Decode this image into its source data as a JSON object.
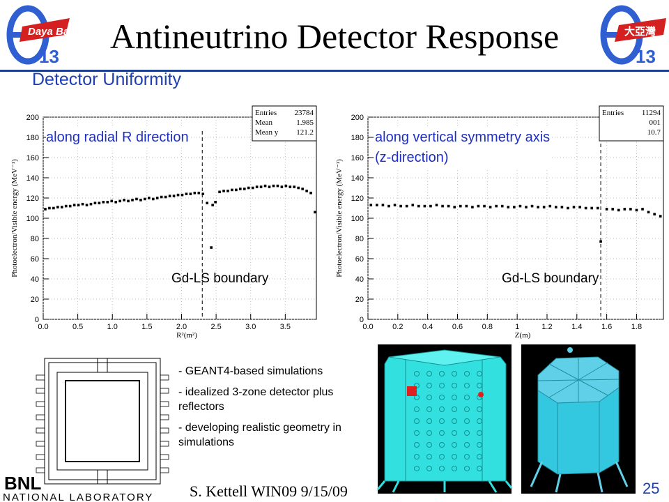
{
  "slide": {
    "title": "Antineutrino Detector Response",
    "subtitle": "Detector Uniformity",
    "page_number": "25",
    "footer": "S. Kettell WIN09 9/15/09",
    "logos": {
      "left": {
        "text": "Daya Bay",
        "symbol": "θ",
        "sub": "13"
      },
      "right": {
        "text": "大亞灣",
        "symbol": "θ",
        "sub": "13"
      },
      "bnl": {
        "text": "BNL",
        "subtext": "NATIONAL LABORATORY"
      }
    },
    "bullets": [
      "- GEANT4-based simulations",
      "- idealized 3-zone detector plus reflectors",
      "- developing realistic geometry in simulations"
    ],
    "colors": {
      "accent": "#1f3fb0",
      "rule": "#1f3f8f",
      "detector": "#33e0e0"
    }
  },
  "chart_data": [
    {
      "type": "scatter",
      "overlay_label": "along radial R direction",
      "boundary_label": "Gd-LS boundary",
      "boundary_x": 2.3,
      "xlabel": "R²(m²)",
      "ylabel": "Photoelectron/Visible energy (MeV⁻¹)",
      "xlim": [
        0,
        3.95
      ],
      "ylim": [
        0,
        200
      ],
      "xticks": [
        "0.0",
        "0.5",
        "1.0",
        "1.5",
        "2.0",
        "2.5",
        "3.0",
        "3.5"
      ],
      "xtick_values": [
        0,
        0.5,
        1.0,
        1.5,
        2.0,
        2.5,
        3.0,
        3.5
      ],
      "yticks": [
        "0",
        "20",
        "40",
        "60",
        "80",
        "100",
        "120",
        "140",
        "160",
        "180",
        "200"
      ],
      "stats": {
        "rows": [
          [
            "Entries",
            "23784"
          ],
          [
            "Mean",
            "1.985"
          ],
          [
            "Mean y",
            "121.2"
          ]
        ]
      },
      "x": [
        0.03,
        0.09,
        0.15,
        0.21,
        0.27,
        0.33,
        0.39,
        0.45,
        0.51,
        0.57,
        0.63,
        0.69,
        0.75,
        0.81,
        0.87,
        0.93,
        0.99,
        1.05,
        1.11,
        1.17,
        1.23,
        1.29,
        1.35,
        1.41,
        1.47,
        1.53,
        1.59,
        1.65,
        1.71,
        1.77,
        1.83,
        1.89,
        1.95,
        2.01,
        2.07,
        2.13,
        2.19,
        2.25,
        2.31,
        2.37,
        2.43,
        2.45,
        2.49,
        2.55,
        2.61,
        2.67,
        2.73,
        2.79,
        2.85,
        2.91,
        2.97,
        3.03,
        3.09,
        3.15,
        3.21,
        3.27,
        3.33,
        3.39,
        3.45,
        3.51,
        3.57,
        3.63,
        3.69,
        3.75,
        3.81,
        3.87,
        3.93
      ],
      "y": [
        109,
        110,
        110,
        111,
        111,
        112,
        112,
        113,
        113,
        114,
        113,
        114,
        115,
        115,
        116,
        116,
        117,
        116,
        117,
        118,
        117,
        118,
        119,
        118,
        119,
        120,
        119,
        120,
        121,
        121,
        122,
        122,
        123,
        123,
        124,
        124,
        125,
        125,
        124,
        115,
        71,
        113,
        116,
        126,
        127,
        127,
        128,
        128,
        129,
        129,
        130,
        130,
        131,
        131,
        132,
        131,
        132,
        132,
        131,
        132,
        131,
        131,
        130,
        129,
        127,
        125,
        106
      ]
    },
    {
      "type": "scatter",
      "overlay_label": "along vertical symmetry axis (z-direction)",
      "overlay_lines": [
        "along vertical symmetry axis",
        "(z-direction)"
      ],
      "boundary_label": "Gd-LS boundary",
      "boundary_x": 1.56,
      "xlabel": "Z(m)",
      "ylabel": "Photoelectron/Visible energy (MeV⁻¹)",
      "xlim": [
        0,
        1.98
      ],
      "ylim": [
        0,
        200
      ],
      "xticks": [
        "0.0",
        "0.2",
        "0.4",
        "0.6",
        "0.8",
        "1",
        "1.2",
        "1.4",
        "1.6",
        "1.8"
      ],
      "xtick_values": [
        0,
        0.2,
        0.4,
        0.6,
        0.8,
        1.0,
        1.2,
        1.4,
        1.6,
        1.8
      ],
      "yticks": [
        "0",
        "20",
        "40",
        "60",
        "80",
        "100",
        "120",
        "140",
        "160",
        "180",
        "200"
      ],
      "stats": {
        "rows": [
          [
            "Entries",
            "11294"
          ],
          [
            "",
            "001"
          ],
          [
            "",
            "10.7"
          ]
        ]
      },
      "x": [
        0.02,
        0.06,
        0.1,
        0.14,
        0.18,
        0.22,
        0.26,
        0.3,
        0.34,
        0.38,
        0.42,
        0.46,
        0.5,
        0.54,
        0.58,
        0.62,
        0.66,
        0.7,
        0.74,
        0.78,
        0.82,
        0.86,
        0.9,
        0.94,
        0.98,
        1.02,
        1.06,
        1.1,
        1.14,
        1.18,
        1.22,
        1.26,
        1.3,
        1.34,
        1.38,
        1.42,
        1.46,
        1.5,
        1.54,
        1.56,
        1.6,
        1.64,
        1.68,
        1.72,
        1.76,
        1.8,
        1.84,
        1.88,
        1.92,
        1.96
      ],
      "y": [
        113,
        113,
        113,
        112,
        113,
        112,
        112,
        113,
        112,
        112,
        112,
        113,
        112,
        112,
        111,
        112,
        112,
        111,
        112,
        112,
        111,
        112,
        112,
        111,
        111,
        112,
        111,
        112,
        111,
        111,
        112,
        111,
        111,
        110,
        111,
        111,
        110,
        110,
        110,
        77,
        109,
        109,
        108,
        109,
        109,
        108,
        109,
        106,
        104,
        102
      ]
    }
  ]
}
